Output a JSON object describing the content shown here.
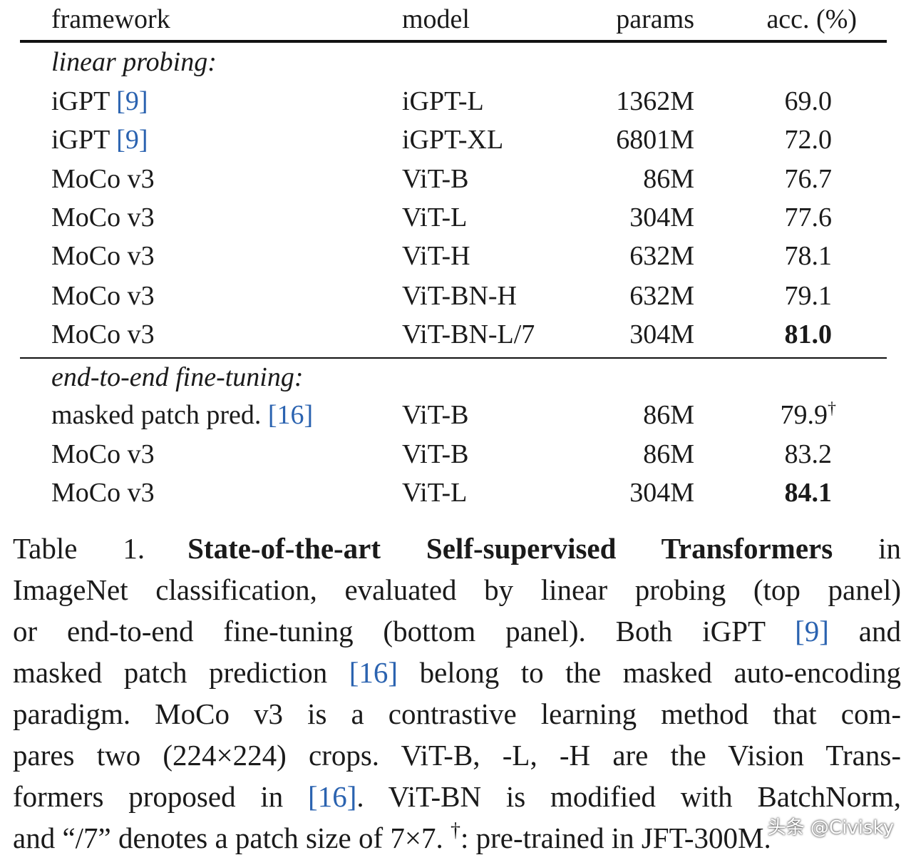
{
  "table": {
    "headers": {
      "framework": "framework",
      "model": "model",
      "params": "params",
      "acc": "acc. (%)"
    },
    "sections": [
      {
        "title": "linear probing:",
        "rows": [
          {
            "framework": "iGPT ",
            "ref": "[9]",
            "model": "iGPT-L",
            "params": "1362M",
            "acc": "69.0"
          },
          {
            "framework": "iGPT ",
            "ref": "[9]",
            "model": "iGPT-XL",
            "params": "6801M",
            "acc": "72.0"
          },
          {
            "framework": "MoCo v3",
            "model": "ViT-B",
            "params": "86M",
            "acc": "76.7"
          },
          {
            "framework": "MoCo v3",
            "model": "ViT-L",
            "params": "304M",
            "acc": "77.6"
          },
          {
            "framework": "MoCo v3",
            "model": "ViT-H",
            "params": "632M",
            "acc": "78.1"
          },
          {
            "framework": "MoCo v3",
            "model": "ViT-BN-H",
            "params": "632M",
            "acc": "79.1"
          },
          {
            "framework": "MoCo v3",
            "model": "ViT-BN-L/7",
            "params": "304M",
            "acc": "81.0",
            "bold": true
          }
        ]
      },
      {
        "title": "end-to-end fine-tuning:",
        "rows": [
          {
            "framework": "masked patch pred. ",
            "ref": "[16]",
            "model": "ViT-B",
            "params": "86M",
            "acc": "79.9",
            "mark": "†"
          },
          {
            "framework": "MoCo v3",
            "model": "ViT-B",
            "params": "86M",
            "acc": "83.2"
          },
          {
            "framework": "MoCo v3",
            "model": "ViT-L",
            "params": "304M",
            "acc": "84.1",
            "bold": true
          }
        ]
      }
    ]
  },
  "caption": {
    "label": "Table 1.",
    "title": "State-of-the-art Self-supervised Transformers",
    "lines": [
      " in",
      "ImageNet classification, evaluated by linear probing (top panel)",
      "or end-to-end fine-tuning (bottom panel).  Both iGPT ",
      "masked patch prediction ",
      "paradigm.  MoCo v3 is a contrastive learning method that com-",
      "pares two (224×224) crops.  ViT-B, -L, -H are the Vision Trans-",
      "formers proposed in ",
      "and “/7” denotes a patch size of 7×7. ",
      "†",
      ": pre-trained in JFT-300M."
    ],
    "ref9": "[9]",
    "ref16": "[16]",
    "and": " and",
    "belong": " belong to the masked auto-encoding",
    "vitbn": ". ViT-BN is modified with BatchNorm,"
  },
  "watermark": "头条 @Civisky"
}
